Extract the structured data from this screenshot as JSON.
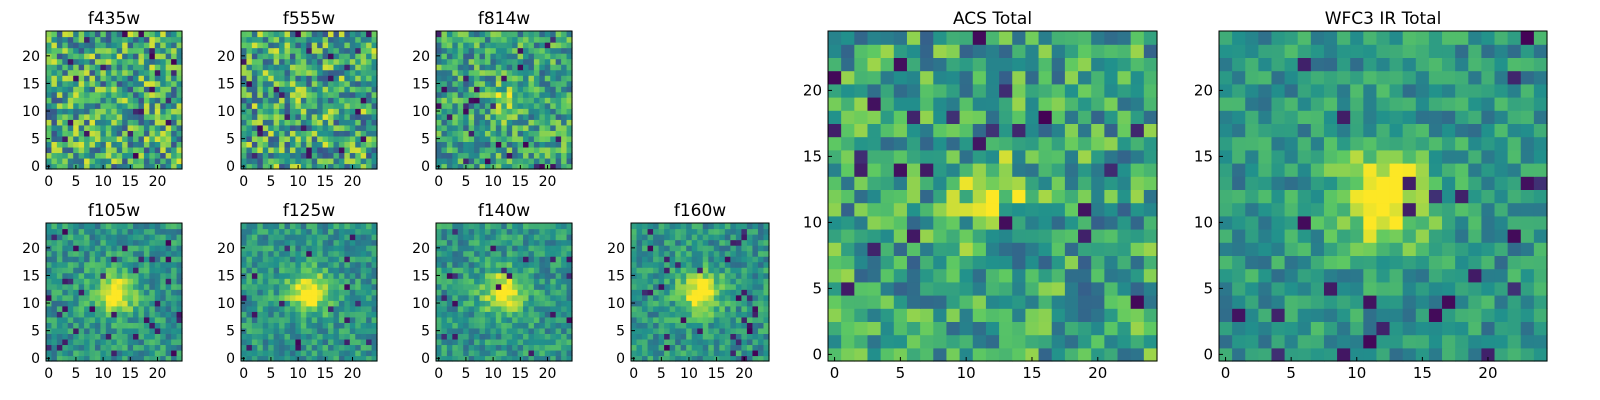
{
  "chart_data": {
    "type": "heatmap",
    "colormap": "viridis",
    "colormap_stops": [
      "#440154",
      "#3b528b",
      "#21918c",
      "#5ec962",
      "#fde725"
    ],
    "grid": "off",
    "panels": [
      {
        "title": "f435w",
        "xticks": [
          "0",
          "5",
          "10",
          "15",
          "20"
        ],
        "yticks": [
          "0",
          "5",
          "10",
          "15",
          "20"
        ],
        "xlim": [
          -0.5,
          24.5
        ],
        "ylim": [
          -0.5,
          24.5
        ],
        "rows": 25,
        "cols": 25,
        "pattern": "noise"
      },
      {
        "title": "f555w",
        "xticks": [
          "0",
          "5",
          "10",
          "15",
          "20"
        ],
        "yticks": [
          "0",
          "5",
          "10",
          "15",
          "20"
        ],
        "xlim": [
          -0.5,
          24.5
        ],
        "ylim": [
          -0.5,
          24.5
        ],
        "rows": 25,
        "cols": 25,
        "pattern": "noise"
      },
      {
        "title": "f814w",
        "xticks": [
          "0",
          "5",
          "10",
          "15",
          "20"
        ],
        "yticks": [
          "0",
          "5",
          "10",
          "15",
          "20"
        ],
        "xlim": [
          -0.5,
          24.5
        ],
        "ylim": [
          -0.5,
          24.5
        ],
        "rows": 25,
        "cols": 25,
        "pattern": "faint-source"
      },
      {
        "title": "f105w",
        "xticks": [
          "0",
          "5",
          "10",
          "15",
          "20"
        ],
        "yticks": [
          "0",
          "5",
          "10",
          "15",
          "20"
        ],
        "xlim": [
          -0.5,
          24.5
        ],
        "ylim": [
          -0.5,
          24.5
        ],
        "rows": 25,
        "cols": 25,
        "pattern": "central-source"
      },
      {
        "title": "f125w",
        "xticks": [
          "0",
          "5",
          "10",
          "15",
          "20"
        ],
        "yticks": [
          "0",
          "5",
          "10",
          "15",
          "20"
        ],
        "xlim": [
          -0.5,
          24.5
        ],
        "ylim": [
          -0.5,
          24.5
        ],
        "rows": 25,
        "cols": 25,
        "pattern": "central-source"
      },
      {
        "title": "f140w",
        "xticks": [
          "0",
          "5",
          "10",
          "15",
          "20"
        ],
        "yticks": [
          "0",
          "5",
          "10",
          "15",
          "20"
        ],
        "xlim": [
          -0.5,
          24.5
        ],
        "ylim": [
          -0.5,
          24.5
        ],
        "rows": 25,
        "cols": 25,
        "pattern": "central-source"
      },
      {
        "title": "f160w",
        "xticks": [
          "0",
          "5",
          "10",
          "15",
          "20"
        ],
        "yticks": [
          "0",
          "5",
          "10",
          "15",
          "20"
        ],
        "xlim": [
          -0.5,
          24.5
        ],
        "ylim": [
          -0.5,
          24.5
        ],
        "rows": 25,
        "cols": 25,
        "pattern": "central-source"
      },
      {
        "title": "ACS Total",
        "xticks": [
          "0",
          "5",
          "10",
          "15",
          "20"
        ],
        "yticks": [
          "0",
          "5",
          "10",
          "15",
          "20"
        ],
        "xlim": [
          -0.5,
          24.5
        ],
        "ylim": [
          -0.5,
          24.5
        ],
        "rows": 25,
        "cols": 25,
        "pattern": "faint-source"
      },
      {
        "title": "WFC3 IR Total",
        "xticks": [
          "0",
          "5",
          "10",
          "15",
          "20"
        ],
        "yticks": [
          "0",
          "5",
          "10",
          "15",
          "20"
        ],
        "xlim": [
          -0.5,
          24.5
        ],
        "ylim": [
          -0.5,
          24.5
        ],
        "rows": 25,
        "cols": 25,
        "pattern": "central-source"
      }
    ]
  }
}
